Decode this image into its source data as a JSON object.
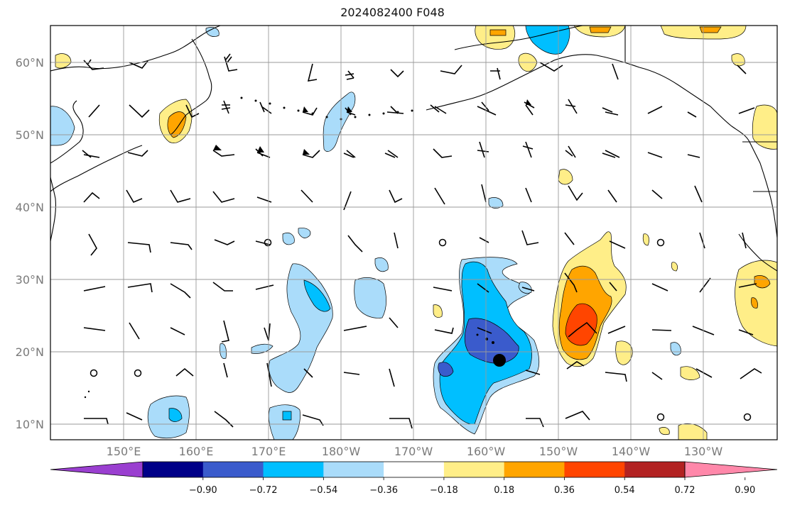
{
  "title": "2024082400 F048",
  "map": {
    "lat_labels": [
      "10°N",
      "20°N",
      "30°N",
      "40°N",
      "50°N",
      "60°N"
    ],
    "lon_labels": [
      "150°E",
      "160°E",
      "170°E",
      "180°W",
      "170°W",
      "160°W",
      "150°W",
      "140°W",
      "130°W"
    ],
    "grid": true
  },
  "colorbar": {
    "ticks": [
      "−0.90",
      "−0.72",
      "−0.54",
      "−0.36",
      "−0.18",
      "0.18",
      "0.36",
      "0.54",
      "0.72",
      "0.90"
    ],
    "colors": [
      "#9a3fd0",
      "#000088",
      "#3a5bcc",
      "#00bfff",
      "#aadcfa",
      "#ffffff",
      "#ffee88",
      "#ffa500",
      "#ff4500",
      "#b22222",
      "#ff88aa"
    ],
    "extend": "both"
  },
  "features": {
    "marker": "filled-circle",
    "wind_barbs": true
  }
}
